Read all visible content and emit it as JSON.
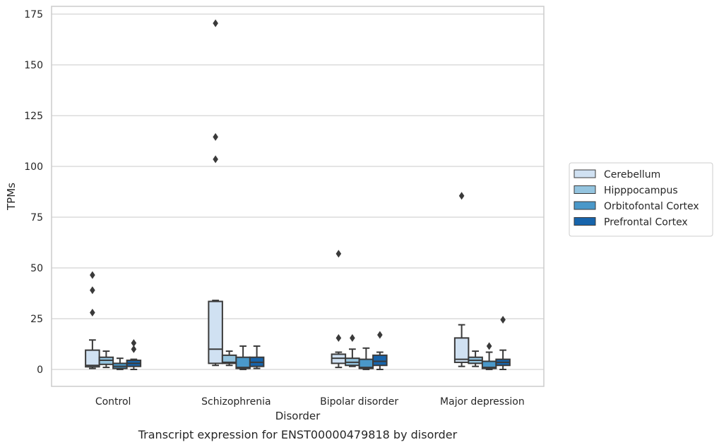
{
  "chart_data": {
    "type": "box",
    "caption": "Transcript expression for ENST00000479818 by disorder",
    "xlabel": "Disorder",
    "ylabel": "TPMs",
    "ylim": [
      -8,
      179
    ],
    "yticks": [
      0,
      25,
      50,
      75,
      100,
      125,
      150,
      175
    ],
    "grid": "horizontal",
    "legend_position": "right",
    "categories": [
      "Control",
      "Schizophrenia",
      "Bipolar disorder",
      "Major depression"
    ],
    "series": [
      {
        "name": "Cerebellum",
        "color": "#d0e1f2",
        "boxes": [
          {
            "whislo": 0.5,
            "q1": 1.3,
            "med": 2,
            "q3": 9.5,
            "whishi": 14.5,
            "fliers": [
              28,
              39,
              46.5
            ]
          },
          {
            "whislo": 2,
            "q1": 3,
            "med": 10,
            "q3": 33.5,
            "whishi": 34,
            "fliers": [
              103.5,
              114.5,
              170.5
            ]
          },
          {
            "whislo": 1,
            "q1": 3,
            "med": 5.5,
            "q3": 7.5,
            "whishi": 8.5,
            "fliers": [
              15.5,
              57
            ]
          },
          {
            "whislo": 1.5,
            "q1": 3.5,
            "med": 5,
            "q3": 15.5,
            "whishi": 22,
            "fliers": [
              85.5
            ]
          }
        ]
      },
      {
        "name": "Hipppocampus",
        "color": "#94c4df",
        "boxes": [
          {
            "whislo": 1,
            "q1": 2.5,
            "med": 4.5,
            "q3": 6,
            "whishi": 9,
            "fliers": []
          },
          {
            "whislo": 2,
            "q1": 3,
            "med": 3.5,
            "q3": 7,
            "whishi": 9,
            "fliers": []
          },
          {
            "whislo": 1.5,
            "q1": 2,
            "med": 3.5,
            "q3": 5.5,
            "whishi": 10,
            "fliers": [
              15.5
            ]
          },
          {
            "whislo": 1.5,
            "q1": 3,
            "med": 4.5,
            "q3": 6,
            "whishi": 9,
            "fliers": []
          }
        ]
      },
      {
        "name": "Orbitofontal Cortex",
        "color": "#4a98c9",
        "boxes": [
          {
            "whislo": 0,
            "q1": 0.5,
            "med": 1.5,
            "q3": 3,
            "whishi": 5.5,
            "fliers": []
          },
          {
            "whislo": 0,
            "q1": 0.5,
            "med": 1,
            "q3": 6,
            "whishi": 11.5,
            "fliers": []
          },
          {
            "whislo": 0,
            "q1": 0.5,
            "med": 1,
            "q3": 5,
            "whishi": 10.5,
            "fliers": []
          },
          {
            "whislo": 0,
            "q1": 0.5,
            "med": 1,
            "q3": 4,
            "whishi": 8.5,
            "fliers": [
              11.5
            ]
          }
        ]
      },
      {
        "name": "Prefrontal Cortex",
        "color": "#1764ab",
        "boxes": [
          {
            "whislo": 0,
            "q1": 1.5,
            "med": 3,
            "q3": 4.5,
            "whishi": 5,
            "fliers": [
              10,
              13
            ]
          },
          {
            "whislo": 0.5,
            "q1": 1.5,
            "med": 3.5,
            "q3": 6,
            "whishi": 11.5,
            "fliers": []
          },
          {
            "whislo": 0,
            "q1": 2,
            "med": 4,
            "q3": 7,
            "whishi": 8.5,
            "fliers": [
              17
            ]
          },
          {
            "whislo": 0,
            "q1": 2,
            "med": 3.5,
            "q3": 5,
            "whishi": 9.5,
            "fliers": [
              24.5
            ]
          }
        ]
      }
    ]
  }
}
